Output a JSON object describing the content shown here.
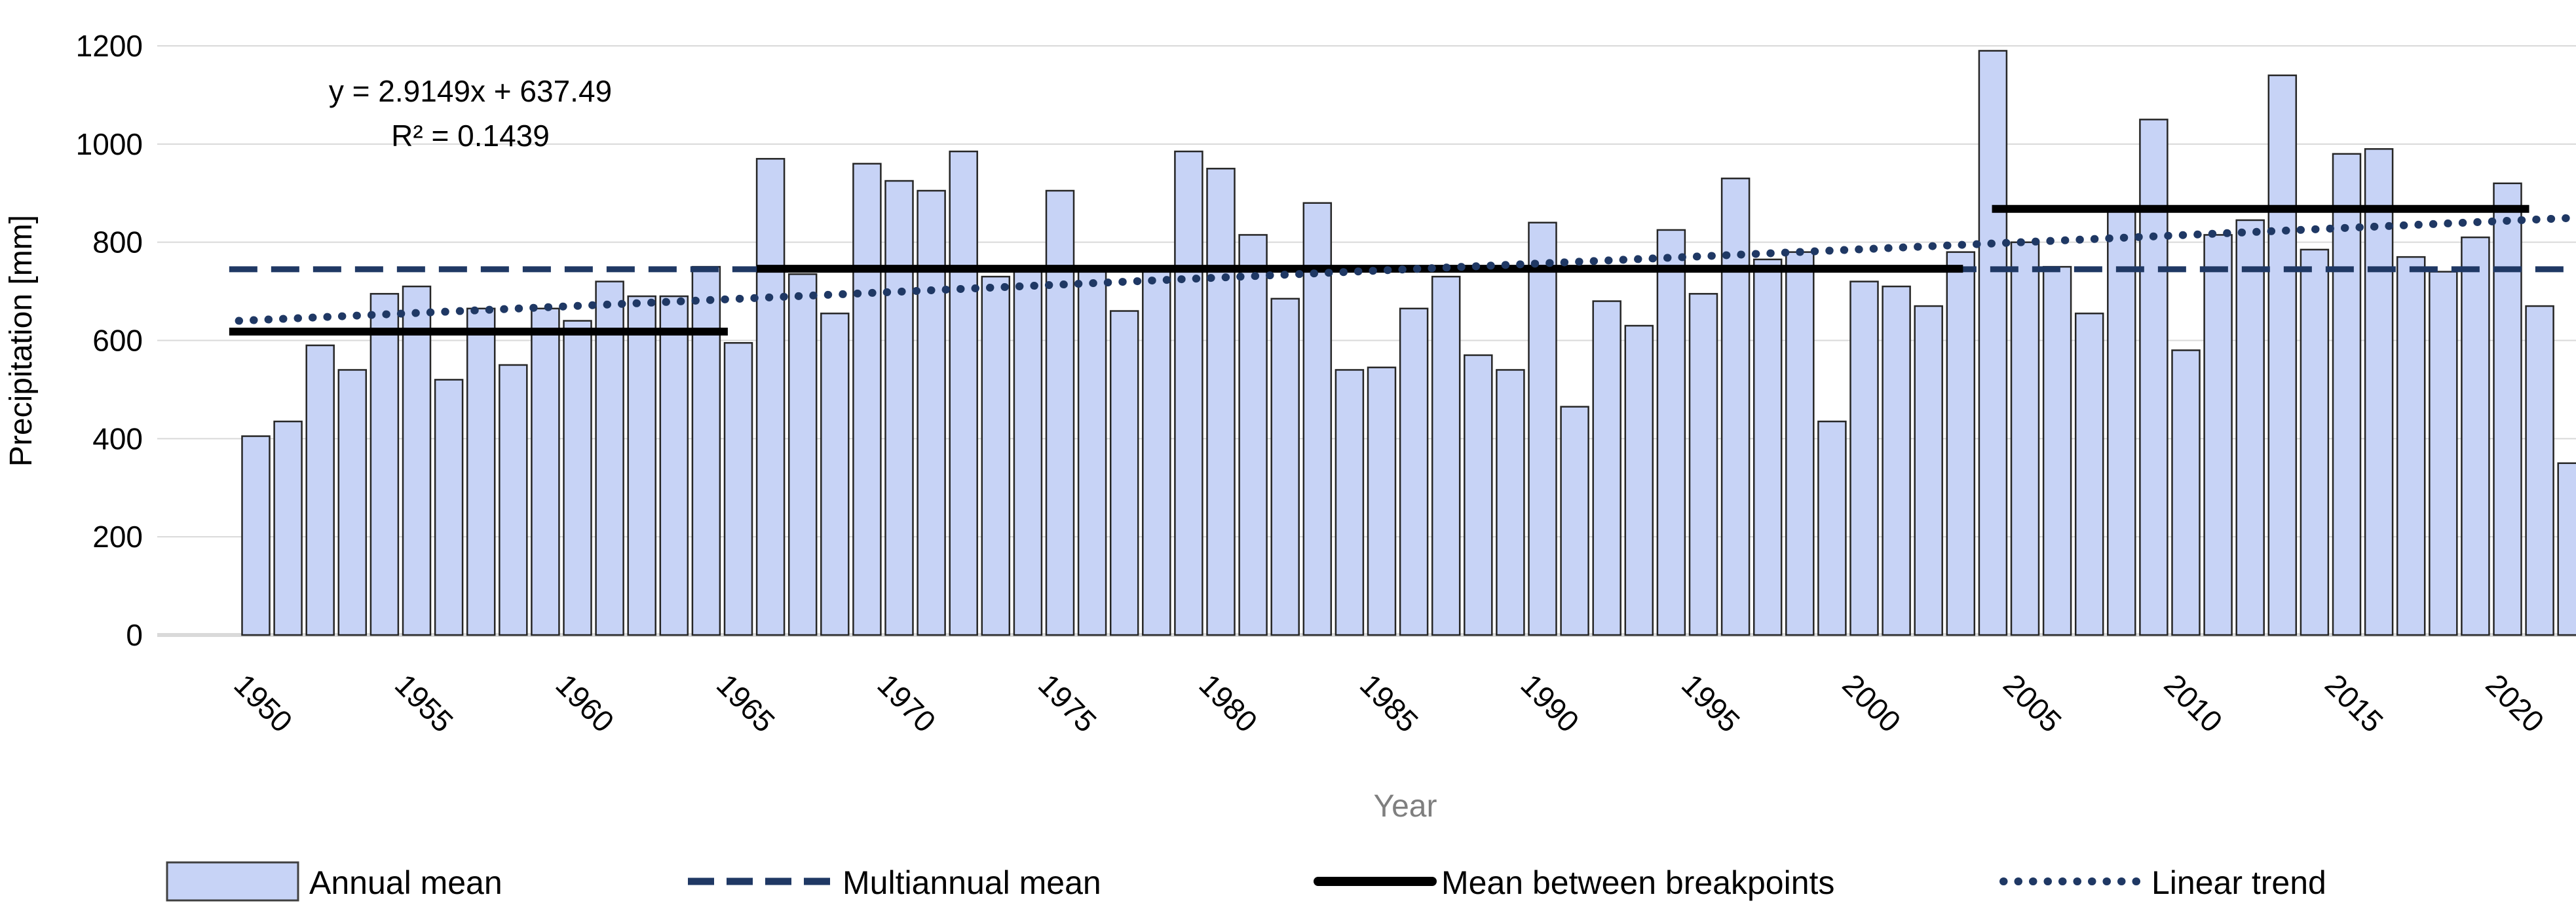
{
  "annotation": {
    "equation": "y = 2.9149x + 637.49",
    "r_squared": "R² = 0.1439"
  },
  "y_axis": {
    "title": "Precipitation [mm]",
    "tick_labels": [
      "0",
      "200",
      "400",
      "600",
      "800",
      "1000",
      "1200"
    ],
    "min": 0,
    "max": 1200,
    "tick_step": 200
  },
  "x_axis": {
    "title": "Year",
    "tick_labels": [
      "1950",
      "1955",
      "1960",
      "1965",
      "1970",
      "1975",
      "1980",
      "1985",
      "1990",
      "1995",
      "2000",
      "2005",
      "2010",
      "2015",
      "2020"
    ],
    "label_every_n_years": 5
  },
  "legend": {
    "annual_mean": "Annual mean",
    "multiannual_mean": "Multiannual mean",
    "mean_between_breakpoints": "Mean between breakpoints",
    "linear_trend": "Linear trend"
  },
  "colors": {
    "bar_fill": "#c7d3f6",
    "bar_border": "#262626",
    "navy": "#1f3864",
    "black_line": "#000000",
    "gridline": "#d9d9d9",
    "axis_title_gray": "#7f7f7f"
  },
  "chart_data": {
    "type": "bar",
    "title": "",
    "xlabel": "Year",
    "ylabel": "Precipitation [mm]",
    "ylim": [
      0,
      1200
    ],
    "grid": true,
    "legend_position": "bottom",
    "categories": [
      1950,
      1951,
      1952,
      1953,
      1954,
      1955,
      1956,
      1957,
      1958,
      1959,
      1960,
      1961,
      1962,
      1963,
      1964,
      1965,
      1966,
      1967,
      1968,
      1969,
      1970,
      1971,
      1972,
      1973,
      1974,
      1975,
      1976,
      1977,
      1978,
      1979,
      1980,
      1981,
      1982,
      1983,
      1984,
      1985,
      1986,
      1987,
      1988,
      1989,
      1990,
      1991,
      1992,
      1993,
      1994,
      1995,
      1996,
      1997,
      1998,
      1999,
      2000,
      2001,
      2002,
      2003,
      2004,
      2005,
      2006,
      2007,
      2008,
      2009,
      2010,
      2011,
      2012,
      2013,
      2014,
      2015,
      2016,
      2017,
      2018,
      2019,
      2020,
      2021,
      2022
    ],
    "series": [
      {
        "name": "Annual mean",
        "type": "bar",
        "values": [
          405,
          435,
          590,
          540,
          695,
          710,
          520,
          665,
          550,
          665,
          640,
          720,
          690,
          690,
          750,
          595,
          970,
          735,
          655,
          960,
          925,
          905,
          985,
          730,
          745,
          905,
          740,
          660,
          750,
          985,
          950,
          815,
          685,
          880,
          540,
          545,
          665,
          730,
          570,
          540,
          840,
          465,
          680,
          630,
          825,
          695,
          930,
          765,
          780,
          435,
          720,
          710,
          670,
          780,
          1190,
          800,
          750,
          655,
          870,
          1050,
          580,
          815,
          845,
          1140,
          785,
          980,
          990,
          770,
          740,
          810,
          920,
          670,
          350
        ]
      },
      {
        "name": "Multiannual mean",
        "type": "dashed_line",
        "value": 745,
        "x_from": 1949.6,
        "x_to": 2022.6
      },
      {
        "name": "Mean between breakpoints",
        "type": "segments",
        "segments": [
          {
            "x_from": 1949.6,
            "x_to": 1965.1,
            "value": 618
          },
          {
            "x_from": 1966.0,
            "x_to": 2003.5,
            "value": 746
          },
          {
            "x_from": 2004.4,
            "x_to": 2021.1,
            "value": 868
          }
        ]
      },
      {
        "name": "Linear trend",
        "type": "dotted_line",
        "x_from": 1949.9,
        "x_to": 2022.6,
        "value_from": 640,
        "value_to": 850
      }
    ]
  }
}
